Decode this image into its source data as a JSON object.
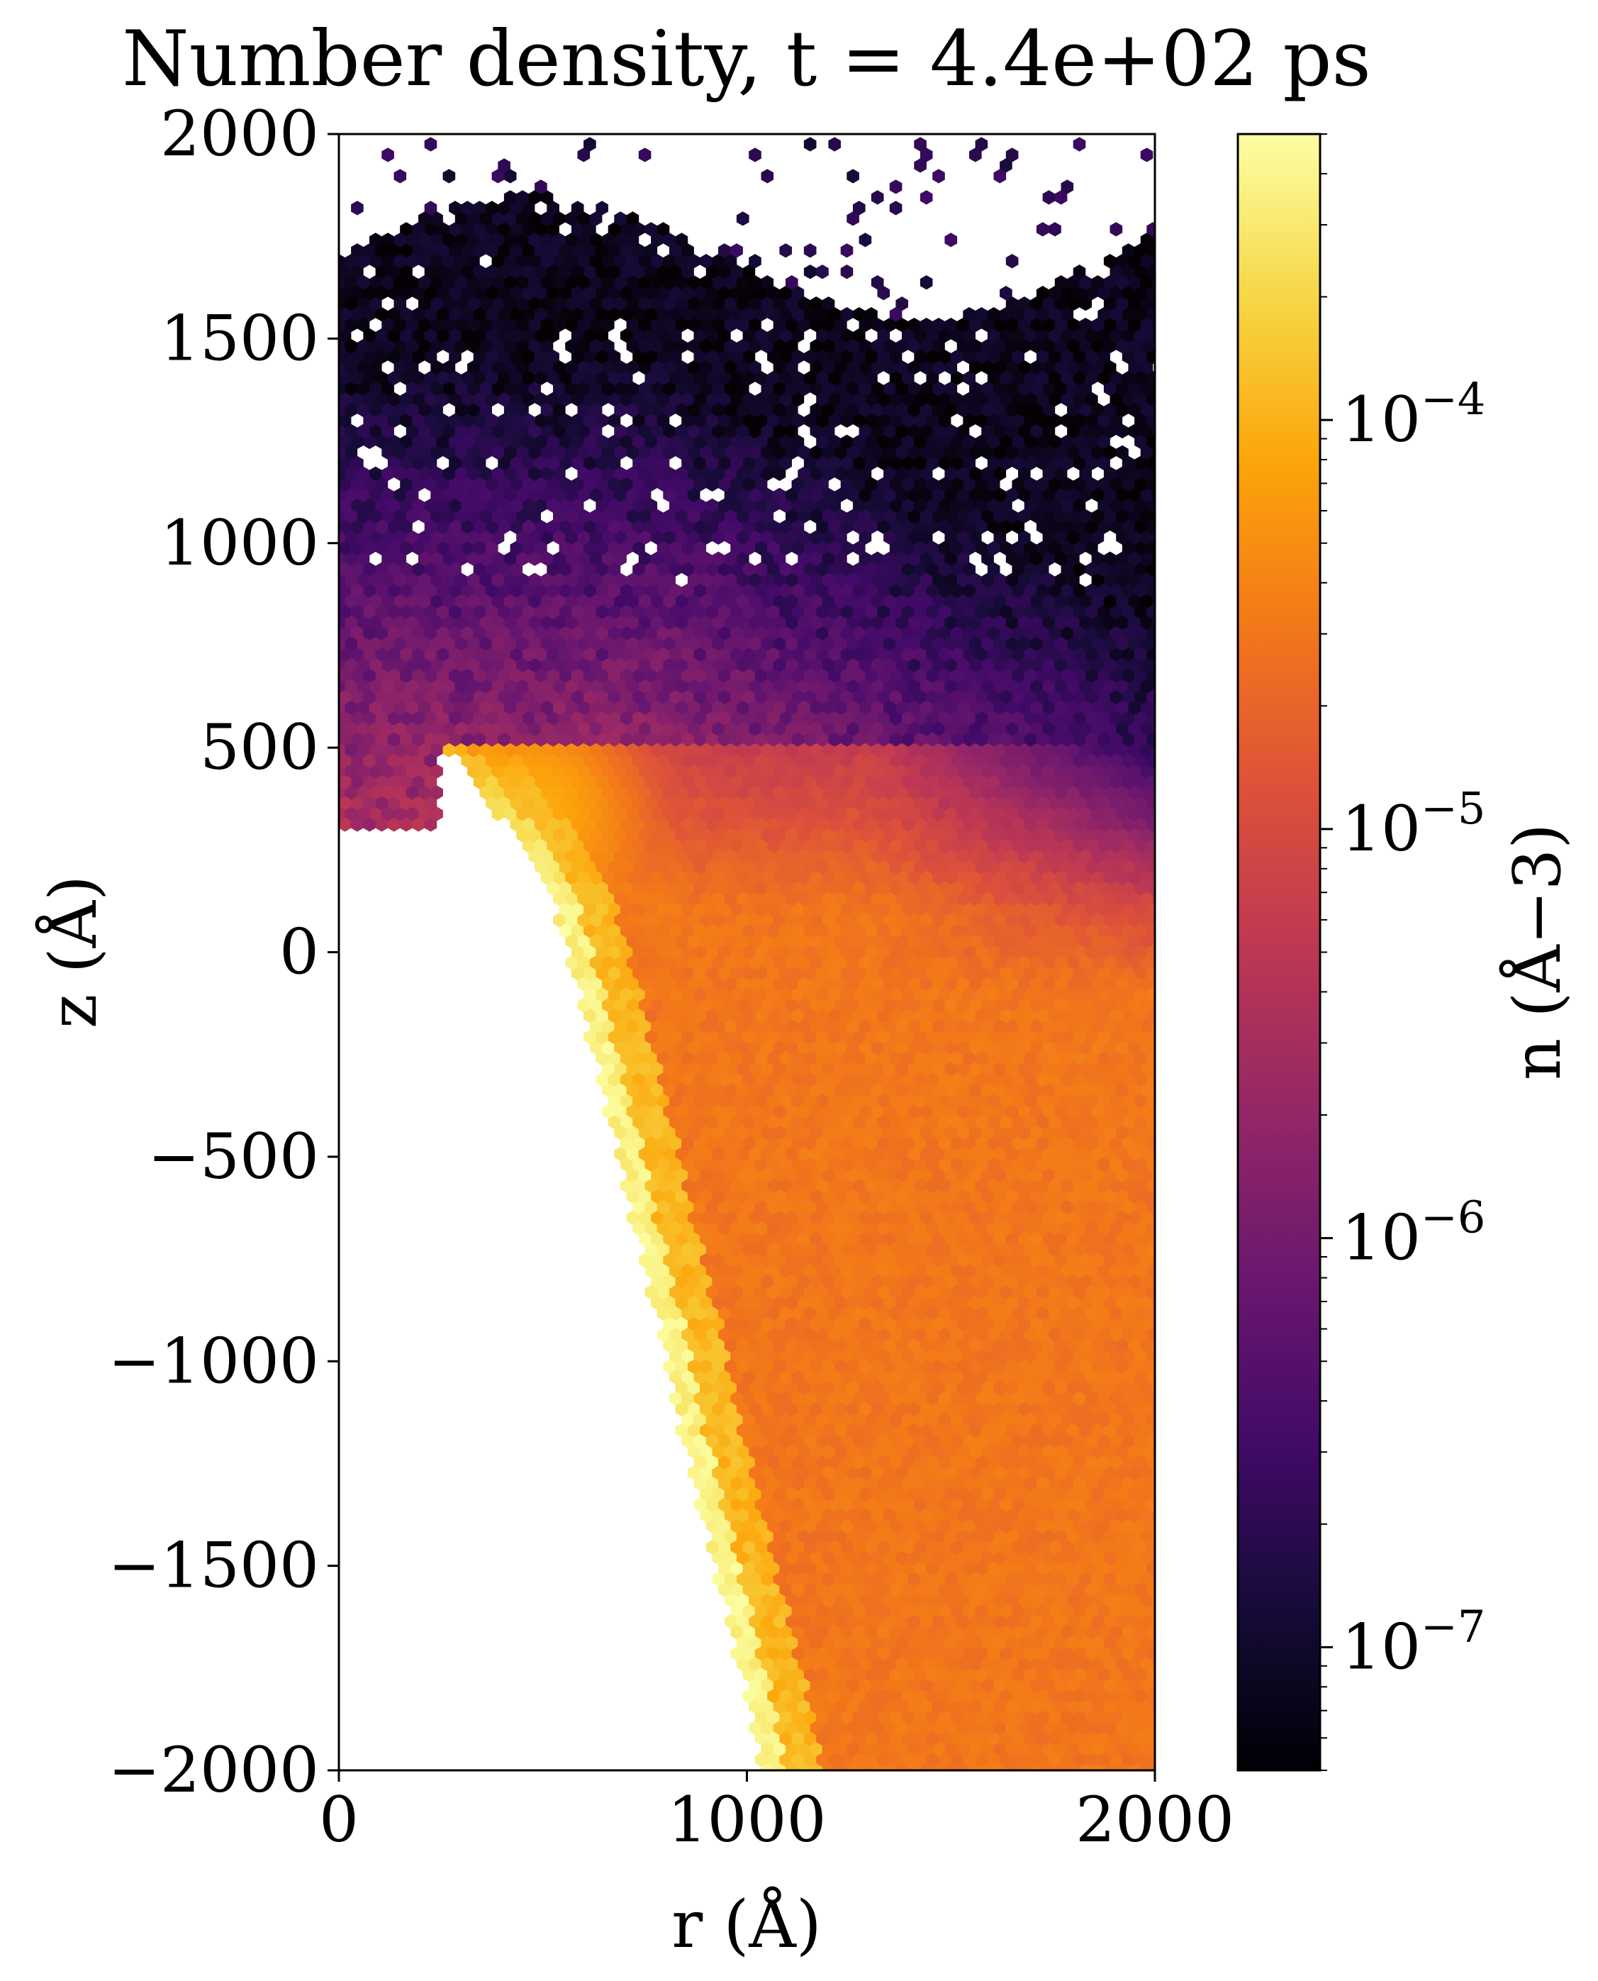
{
  "chart_data": {
    "type": "heatmap",
    "subtype": "hexbin",
    "title": "Number density, t = 4.4e+02 ps",
    "xlabel": "r (Å)",
    "ylabel": "z (Å)",
    "xlim": [
      0,
      2000
    ],
    "ylim": [
      -2000,
      2000
    ],
    "x_ticks": [
      "0",
      "1000",
      "2000"
    ],
    "y_ticks": [
      "2000",
      "1500",
      "1000",
      "500",
      "0",
      "−500",
      "−1000",
      "−1500",
      "−2000"
    ],
    "colorbar": {
      "label": "n (Å−3)",
      "scale": "log",
      "colormap": "inferno",
      "range": [
        5e-08,
        0.0005
      ],
      "ticks": [
        {
          "value": 0.0001,
          "label": "10−4"
        },
        {
          "value": 1e-05,
          "label": "10−5"
        },
        {
          "value": 1e-06,
          "label": "10−6"
        },
        {
          "value": 1e-07,
          "label": "10−7"
        }
      ]
    },
    "grid": false,
    "features": {
      "inner_edge_z_vs_r": [
        [
          250,
          520
        ],
        [
          350,
          390
        ],
        [
          450,
          250
        ],
        [
          520,
          130
        ],
        [
          560,
          0
        ],
        [
          610,
          -200
        ],
        [
          660,
          -400
        ],
        [
          720,
          -650
        ],
        [
          790,
          -950
        ],
        [
          870,
          -1300
        ],
        [
          960,
          -1650
        ],
        [
          1040,
          -2000
        ]
      ],
      "bright_ridge_density": 0.0004,
      "blob_center": [
        470,
        430
      ],
      "bulk_density": 3e-05,
      "sparse_region_density": 2e-07
    }
  }
}
